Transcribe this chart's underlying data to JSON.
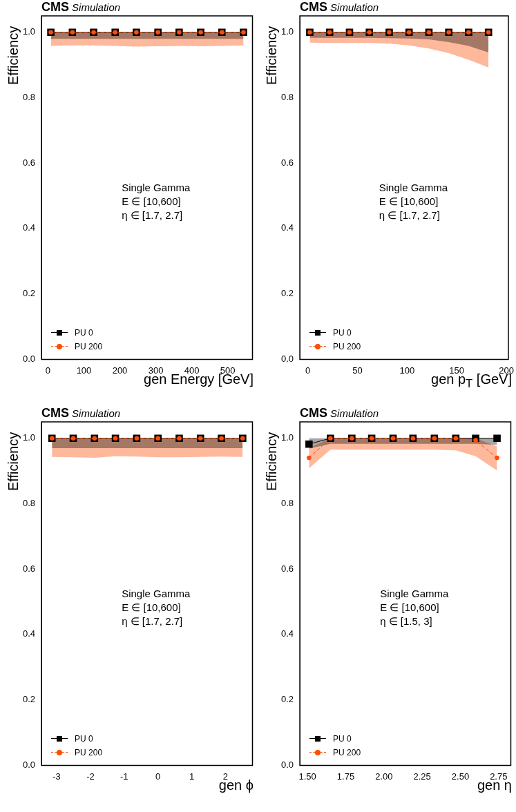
{
  "chart_data": [
    {
      "type": "line",
      "title": "CMS",
      "subtitle": "Simulation",
      "xlabel": "gen Energy [GeV]",
      "ylabel": "Efficiency",
      "legend": "bottom left",
      "annotations": [
        "Single Gamma",
        "E ∈ [10,600]",
        "η ∈ [1.7, 2.7]"
      ],
      "x": [
        8,
        68,
        127,
        187,
        246,
        306,
        365,
        425,
        484,
        544
      ],
      "xlim": [
        -18,
        569
      ],
      "xticks": [
        0,
        100,
        200,
        300,
        400,
        500
      ],
      "ylim": [
        0,
        1.05
      ],
      "yticks": [
        {
          "value": 0,
          "label": "0.0"
        },
        {
          "value": 0.2,
          "label": "0.2"
        },
        {
          "value": 0.4,
          "label": "0.4"
        },
        {
          "value": 0.6,
          "label": "0.6"
        },
        {
          "value": 0.8,
          "label": "0.8"
        },
        {
          "value": 1,
          "label": "1.0"
        }
      ],
      "series": [
        {
          "name": "PU 0",
          "color": "#000000",
          "marker": "square",
          "line_style": "solid",
          "values": [
            1,
            1,
            1,
            1,
            1,
            1,
            1,
            1,
            1,
            1
          ],
          "lower": [
            0.98,
            0.98,
            0.98,
            0.98,
            0.98,
            0.98,
            0.98,
            0.98,
            0.98,
            0.98
          ],
          "upper": [
            1,
            1,
            1,
            1,
            1,
            1,
            1,
            1,
            1,
            1
          ]
        },
        {
          "name": "PU 200",
          "color": "#fc4e07",
          "marker": "circle",
          "line_style": "dashed",
          "values": [
            1,
            1,
            1,
            1,
            1,
            1,
            1,
            1,
            1,
            1
          ],
          "lower": [
            0.958,
            0.96,
            0.96,
            0.958,
            0.956,
            0.957,
            0.958,
            0.957,
            0.958,
            0.96
          ],
          "upper": [
            1,
            1,
            1,
            1,
            1,
            1,
            1,
            1,
            1,
            1
          ]
        }
      ]
    },
    {
      "type": "line",
      "title": "CMS",
      "subtitle": "Simulation",
      "xlabel": "gen p$_{T}$ [GeV]",
      "ylabel": "Efficiency",
      "legend": "bottom left",
      "annotations": [
        "Single Gamma",
        "E ∈ [10,600]",
        "η ∈ [1.7, 2.7]"
      ],
      "x": [
        2,
        22,
        42,
        62,
        82,
        102,
        122,
        142,
        162,
        182
      ],
      "xlim": [
        -8,
        202
      ],
      "xticks": [
        0,
        50,
        100,
        150,
        200
      ],
      "ylim": [
        0,
        1.05
      ],
      "yticks": [
        {
          "value": 0,
          "label": "0.0"
        },
        {
          "value": 0.2,
          "label": "0.2"
        },
        {
          "value": 0.4,
          "label": "0.4"
        },
        {
          "value": 0.6,
          "label": "0.6"
        },
        {
          "value": 0.8,
          "label": "0.8"
        },
        {
          "value": 1,
          "label": "1.0"
        }
      ],
      "series": [
        {
          "name": "PU 0",
          "color": "#000000",
          "marker": "square",
          "line_style": "solid",
          "values": [
            1,
            1,
            1,
            1,
            1,
            1,
            1,
            1,
            1,
            1
          ],
          "lower": [
            0.983,
            0.983,
            0.983,
            0.983,
            0.982,
            0.981,
            0.978,
            0.97,
            0.958,
            0.938
          ],
          "upper": [
            1,
            1,
            1,
            1,
            1,
            1,
            1,
            1,
            1,
            1
          ]
        },
        {
          "name": "PU 200",
          "color": "#fc4e07",
          "marker": "circle",
          "line_style": "dashed",
          "values": [
            1,
            1,
            1,
            1,
            1,
            1,
            1,
            1,
            1,
            1
          ],
          "lower": [
            0.968,
            0.967,
            0.967,
            0.967,
            0.965,
            0.96,
            0.95,
            0.936,
            0.916,
            0.892
          ],
          "upper": [
            1,
            1,
            1,
            1,
            1,
            1,
            1,
            1,
            1,
            1
          ]
        }
      ]
    },
    {
      "type": "line",
      "title": "CMS",
      "subtitle": "Simulation",
      "xlabel": "gen ϕ",
      "ylabel": "Efficiency",
      "legend": "bottom left",
      "annotations": [
        "Single Gamma",
        "E ∈ [10,600]",
        "η ∈ [1.7, 2.7]"
      ],
      "x": [
        -3.14,
        -2.51,
        -1.88,
        -1.26,
        -0.63,
        0,
        0.63,
        1.26,
        1.88,
        2.51
      ],
      "xlim": [
        -3.45,
        2.8
      ],
      "xticks": [
        -3,
        -2,
        -1,
        0,
        1,
        2
      ],
      "ylim": [
        0,
        1.05
      ],
      "yticks": [
        {
          "value": 0,
          "label": "0.0"
        },
        {
          "value": 0.2,
          "label": "0.2"
        },
        {
          "value": 0.4,
          "label": "0.4"
        },
        {
          "value": 0.6,
          "label": "0.6"
        },
        {
          "value": 0.8,
          "label": "0.8"
        },
        {
          "value": 1,
          "label": "1.0"
        }
      ],
      "series": [
        {
          "name": "PU 0",
          "color": "#000000",
          "marker": "square",
          "line_style": "solid",
          "values": [
            1,
            1,
            1,
            1,
            1,
            1,
            1,
            1,
            1,
            1
          ],
          "lower": [
            0.97,
            0.97,
            0.97,
            0.97,
            0.97,
            0.97,
            0.97,
            0.97,
            0.97,
            0.97
          ],
          "upper": [
            1,
            1,
            1,
            1,
            1,
            1,
            1,
            1,
            1,
            1
          ]
        },
        {
          "name": "PU 200",
          "color": "#fc4e07",
          "marker": "circle",
          "line_style": "dashed",
          "values": [
            1,
            1,
            1,
            1,
            1,
            1,
            1,
            1,
            1,
            1
          ],
          "lower": [
            0.943,
            0.942,
            0.94,
            0.945,
            0.944,
            0.942,
            0.942,
            0.943,
            0.944,
            0.943
          ],
          "upper": [
            1,
            1,
            1,
            1,
            1,
            1,
            1,
            1,
            1,
            1
          ]
        }
      ]
    },
    {
      "type": "line",
      "title": "CMS",
      "subtitle": "Simulation",
      "xlabel": "gen η",
      "ylabel": "Efficiency",
      "legend": "bottom left",
      "annotations": [
        "Single Gamma",
        "E ∈ [10,600]",
        "η ∈ [1.5, 3]"
      ],
      "x": [
        1.51,
        1.65,
        1.79,
        1.92,
        2.06,
        2.19,
        2.33,
        2.47,
        2.6,
        2.74
      ],
      "xlim": [
        1.45,
        2.83
      ],
      "xticks": [
        {
          "value": 1.5,
          "label": "1.50"
        },
        {
          "value": 1.75,
          "label": "1.75"
        },
        {
          "value": 2,
          "label": "2.00"
        },
        {
          "value": 2.25,
          "label": "2.25"
        },
        {
          "value": 2.5,
          "label": "2.50"
        },
        {
          "value": 2.75,
          "label": "2.75"
        }
      ],
      "ylim": [
        0,
        1.05
      ],
      "yticks": [
        {
          "value": 0,
          "label": "0.0"
        },
        {
          "value": 0.2,
          "label": "0.2"
        },
        {
          "value": 0.4,
          "label": "0.4"
        },
        {
          "value": 0.6,
          "label": "0.6"
        },
        {
          "value": 0.8,
          "label": "0.8"
        },
        {
          "value": 1,
          "label": "1.0"
        }
      ],
      "series": [
        {
          "name": "PU 0",
          "color": "#000000",
          "marker": "square",
          "line_style": "solid",
          "values": [
            0.982,
            1,
            1,
            1,
            1,
            1,
            1,
            1,
            1,
            1
          ],
          "lower": [
            0.968,
            0.983,
            0.983,
            0.983,
            0.983,
            0.983,
            0.983,
            0.983,
            0.983,
            0.98
          ],
          "upper": [
            1,
            1,
            1,
            1,
            1,
            1,
            1,
            1,
            1,
            1
          ]
        },
        {
          "name": "PU 200",
          "color": "#fc4e07",
          "marker": "circle",
          "line_style": "dashed",
          "values": [
            0.94,
            1,
            1,
            1,
            1,
            1,
            1,
            1,
            0.994,
            0.94
          ],
          "lower": [
            0.908,
            0.965,
            0.965,
            0.965,
            0.965,
            0.965,
            0.965,
            0.963,
            0.945,
            0.901
          ],
          "upper": [
            0.97,
            1,
            1,
            1,
            1,
            1,
            1,
            1,
            1,
            0.975
          ]
        }
      ]
    }
  ]
}
